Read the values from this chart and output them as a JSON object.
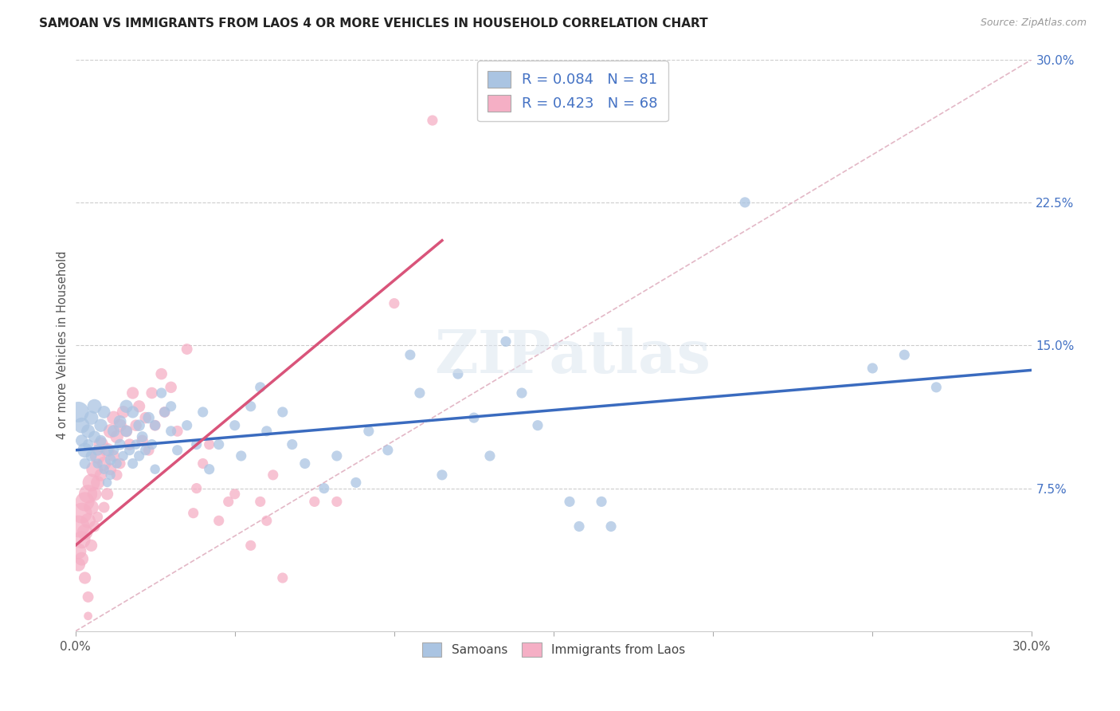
{
  "title": "SAMOAN VS IMMIGRANTS FROM LAOS 4 OR MORE VEHICLES IN HOUSEHOLD CORRELATION CHART",
  "source": "Source: ZipAtlas.com",
  "ylabel": "4 or more Vehicles in Household",
  "samoans_color": "#aac4e2",
  "laos_color": "#f5afc5",
  "samoans_R": 0.084,
  "samoans_N": 81,
  "laos_R": 0.423,
  "laos_N": 68,
  "trend_color_samoans": "#3a6bbf",
  "trend_color_laos": "#d9547a",
  "diagonal_color": "#e0b0c0",
  "right_tick_color": "#4472c4",
  "xmin": 0.0,
  "xmax": 0.3,
  "ymin": 0.0,
  "ymax": 0.3,
  "samoans_trend_x0": 0.0,
  "samoans_trend_y0": 0.095,
  "samoans_trend_x1": 0.3,
  "samoans_trend_y1": 0.137,
  "laos_trend_x0": 0.0,
  "laos_trend_y0": 0.045,
  "laos_trend_x1": 0.115,
  "laos_trend_y1": 0.205,
  "samoans_pts": [
    [
      0.001,
      0.115
    ],
    [
      0.002,
      0.108
    ],
    [
      0.002,
      0.1
    ],
    [
      0.003,
      0.095
    ],
    [
      0.003,
      0.088
    ],
    [
      0.004,
      0.105
    ],
    [
      0.004,
      0.098
    ],
    [
      0.005,
      0.112
    ],
    [
      0.005,
      0.092
    ],
    [
      0.006,
      0.118
    ],
    [
      0.006,
      0.102
    ],
    [
      0.007,
      0.095
    ],
    [
      0.007,
      0.088
    ],
    [
      0.008,
      0.108
    ],
    [
      0.008,
      0.1
    ],
    [
      0.009,
      0.115
    ],
    [
      0.009,
      0.085
    ],
    [
      0.01,
      0.095
    ],
    [
      0.01,
      0.078
    ],
    [
      0.011,
      0.09
    ],
    [
      0.011,
      0.082
    ],
    [
      0.012,
      0.105
    ],
    [
      0.012,
      0.095
    ],
    [
      0.013,
      0.088
    ],
    [
      0.014,
      0.11
    ],
    [
      0.014,
      0.098
    ],
    [
      0.015,
      0.092
    ],
    [
      0.016,
      0.118
    ],
    [
      0.016,
      0.105
    ],
    [
      0.017,
      0.095
    ],
    [
      0.018,
      0.115
    ],
    [
      0.018,
      0.088
    ],
    [
      0.019,
      0.098
    ],
    [
      0.02,
      0.108
    ],
    [
      0.02,
      0.092
    ],
    [
      0.021,
      0.102
    ],
    [
      0.022,
      0.095
    ],
    [
      0.023,
      0.112
    ],
    [
      0.024,
      0.098
    ],
    [
      0.025,
      0.085
    ],
    [
      0.025,
      0.108
    ],
    [
      0.027,
      0.125
    ],
    [
      0.028,
      0.115
    ],
    [
      0.03,
      0.118
    ],
    [
      0.03,
      0.105
    ],
    [
      0.032,
      0.095
    ],
    [
      0.035,
      0.108
    ],
    [
      0.038,
      0.098
    ],
    [
      0.04,
      0.115
    ],
    [
      0.042,
      0.085
    ],
    [
      0.045,
      0.098
    ],
    [
      0.05,
      0.108
    ],
    [
      0.052,
      0.092
    ],
    [
      0.055,
      0.118
    ],
    [
      0.058,
      0.128
    ],
    [
      0.06,
      0.105
    ],
    [
      0.065,
      0.115
    ],
    [
      0.068,
      0.098
    ],
    [
      0.072,
      0.088
    ],
    [
      0.078,
      0.075
    ],
    [
      0.082,
      0.092
    ],
    [
      0.088,
      0.078
    ],
    [
      0.092,
      0.105
    ],
    [
      0.098,
      0.095
    ],
    [
      0.105,
      0.145
    ],
    [
      0.108,
      0.125
    ],
    [
      0.115,
      0.082
    ],
    [
      0.12,
      0.135
    ],
    [
      0.125,
      0.112
    ],
    [
      0.13,
      0.092
    ],
    [
      0.135,
      0.152
    ],
    [
      0.14,
      0.125
    ],
    [
      0.145,
      0.108
    ],
    [
      0.155,
      0.068
    ],
    [
      0.158,
      0.055
    ],
    [
      0.165,
      0.068
    ],
    [
      0.168,
      0.055
    ],
    [
      0.21,
      0.225
    ],
    [
      0.25,
      0.138
    ],
    [
      0.26,
      0.145
    ],
    [
      0.27,
      0.128
    ]
  ],
  "laos_pts": [
    [
      0.001,
      0.055
    ],
    [
      0.001,
      0.042
    ],
    [
      0.001,
      0.035
    ],
    [
      0.002,
      0.062
    ],
    [
      0.002,
      0.048
    ],
    [
      0.002,
      0.038
    ],
    [
      0.003,
      0.068
    ],
    [
      0.003,
      0.052
    ],
    [
      0.003,
      0.028
    ],
    [
      0.004,
      0.072
    ],
    [
      0.004,
      0.058
    ],
    [
      0.004,
      0.018
    ],
    [
      0.004,
      0.008
    ],
    [
      0.005,
      0.078
    ],
    [
      0.005,
      0.065
    ],
    [
      0.005,
      0.045
    ],
    [
      0.006,
      0.085
    ],
    [
      0.006,
      0.072
    ],
    [
      0.006,
      0.055
    ],
    [
      0.007,
      0.092
    ],
    [
      0.007,
      0.078
    ],
    [
      0.007,
      0.06
    ],
    [
      0.008,
      0.098
    ],
    [
      0.008,
      0.082
    ],
    [
      0.009,
      0.088
    ],
    [
      0.009,
      0.065
    ],
    [
      0.01,
      0.095
    ],
    [
      0.01,
      0.072
    ],
    [
      0.011,
      0.105
    ],
    [
      0.011,
      0.085
    ],
    [
      0.012,
      0.112
    ],
    [
      0.012,
      0.092
    ],
    [
      0.013,
      0.102
    ],
    [
      0.013,
      0.082
    ],
    [
      0.014,
      0.108
    ],
    [
      0.014,
      0.088
    ],
    [
      0.015,
      0.115
    ],
    [
      0.016,
      0.105
    ],
    [
      0.017,
      0.098
    ],
    [
      0.018,
      0.125
    ],
    [
      0.019,
      0.108
    ],
    [
      0.02,
      0.118
    ],
    [
      0.021,
      0.1
    ],
    [
      0.022,
      0.112
    ],
    [
      0.023,
      0.095
    ],
    [
      0.024,
      0.125
    ],
    [
      0.025,
      0.108
    ],
    [
      0.027,
      0.135
    ],
    [
      0.028,
      0.115
    ],
    [
      0.03,
      0.128
    ],
    [
      0.032,
      0.105
    ],
    [
      0.035,
      0.148
    ],
    [
      0.037,
      0.062
    ],
    [
      0.038,
      0.075
    ],
    [
      0.04,
      0.088
    ],
    [
      0.042,
      0.098
    ],
    [
      0.045,
      0.058
    ],
    [
      0.048,
      0.068
    ],
    [
      0.05,
      0.072
    ],
    [
      0.055,
      0.045
    ],
    [
      0.058,
      0.068
    ],
    [
      0.06,
      0.058
    ],
    [
      0.062,
      0.082
    ],
    [
      0.065,
      0.028
    ],
    [
      0.075,
      0.068
    ],
    [
      0.082,
      0.068
    ],
    [
      0.1,
      0.172
    ],
    [
      0.112,
      0.268
    ]
  ],
  "samoans_sizes": [
    350,
    200,
    120,
    180,
    100,
    150,
    90,
    160,
    100,
    170,
    120,
    100,
    80,
    140,
    100,
    130,
    80,
    110,
    70,
    100,
    80,
    120,
    90,
    80,
    130,
    100,
    80,
    140,
    110,
    90,
    120,
    90,
    80,
    110,
    90,
    100,
    90,
    110,
    90,
    80,
    90,
    90,
    90,
    90,
    90,
    90,
    90,
    90,
    90,
    90,
    90,
    90,
    90,
    90,
    90,
    90,
    90,
    90,
    90,
    90,
    90,
    90,
    90,
    90,
    90,
    90,
    90,
    90,
    90,
    90,
    90,
    90,
    90,
    90,
    90,
    90,
    90,
    90,
    90,
    90,
    90
  ],
  "laos_sizes": [
    400,
    200,
    150,
    350,
    250,
    150,
    300,
    200,
    120,
    280,
    180,
    100,
    60,
    250,
    180,
    120,
    220,
    160,
    100,
    200,
    150,
    90,
    180,
    130,
    160,
    100,
    170,
    120,
    160,
    120,
    150,
    110,
    140,
    100,
    140,
    100,
    130,
    120,
    110,
    120,
    110,
    120,
    110,
    110,
    100,
    110,
    100,
    110,
    100,
    110,
    100,
    100,
    90,
    90,
    90,
    90,
    90,
    90,
    90,
    90,
    90,
    90,
    90,
    90,
    90,
    90,
    90,
    90
  ]
}
